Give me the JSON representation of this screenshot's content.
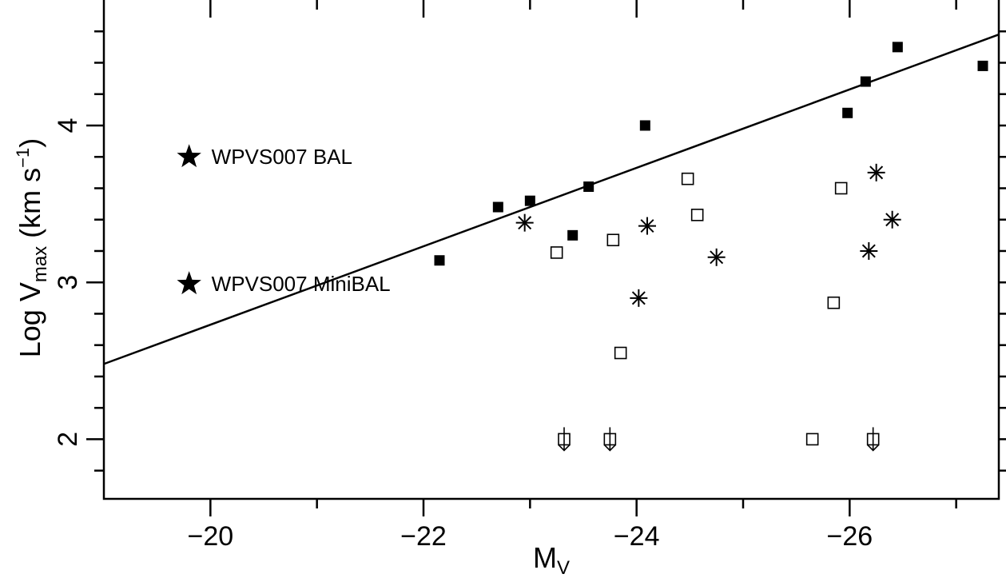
{
  "chart_data": {
    "type": "scatter",
    "title": "",
    "xlabel": "M",
    "xlabel_sub": "V",
    "ylabel_main": "Log V",
    "ylabel_sub": "max",
    "ylabel_unit_pre": " (km s",
    "ylabel_unit_sup": "−1",
    "ylabel_unit_post": ")",
    "xlim": [
      -19,
      -27.4
    ],
    "ylim": [
      1.62,
      4.8
    ],
    "x_reversed": true,
    "grid": false,
    "x_ticks": [
      -20,
      -22,
      -24,
      -26
    ],
    "x_tick_labels": [
      "−20",
      "−22",
      "−24",
      "−26"
    ],
    "x_minor_ticks": [
      -21,
      -23,
      -25,
      -27
    ],
    "y_ticks": [
      2,
      3,
      4
    ],
    "y_tick_labels": [
      "2",
      "3",
      "4"
    ],
    "y_minor_ticks": [
      1.8,
      2.2,
      2.4,
      2.6,
      2.8,
      3.2,
      3.4,
      3.6,
      3.8,
      4.2,
      4.4,
      4.6
    ],
    "fit_line": {
      "x": [
        -19,
        -27.4
      ],
      "y": [
        2.48,
        4.58
      ]
    },
    "series": [
      {
        "marker": "filled-square",
        "points": [
          [
            -22.15,
            3.14
          ],
          [
            -22.7,
            3.48
          ],
          [
            -23.0,
            3.52
          ],
          [
            -23.4,
            3.3
          ],
          [
            -23.55,
            3.61
          ],
          [
            -24.08,
            4.0
          ],
          [
            -25.98,
            4.08
          ],
          [
            -26.15,
            4.28
          ],
          [
            -26.45,
            4.5
          ],
          [
            -27.25,
            4.38
          ]
        ]
      },
      {
        "marker": "open-square",
        "points": [
          [
            -23.25,
            3.19
          ],
          [
            -23.78,
            3.27
          ],
          [
            -23.85,
            2.55
          ],
          [
            -24.48,
            3.66
          ],
          [
            -24.57,
            3.43
          ],
          [
            -25.85,
            2.87
          ],
          [
            -25.92,
            3.6
          ],
          [
            -25.65,
            2.0
          ]
        ]
      },
      {
        "marker": "open-square-upper-limit",
        "points": [
          [
            -23.32,
            2.0
          ],
          [
            -23.75,
            2.0
          ],
          [
            -26.22,
            2.0
          ]
        ]
      },
      {
        "marker": "asterisk",
        "points": [
          [
            -22.95,
            3.38
          ],
          [
            -24.02,
            2.9
          ],
          [
            -24.1,
            3.36
          ],
          [
            -24.75,
            3.16
          ],
          [
            -26.18,
            3.2
          ],
          [
            -26.25,
            3.7
          ],
          [
            -26.4,
            3.4
          ]
        ]
      }
    ],
    "annotations": [
      {
        "text": "WPVS007 BAL",
        "marker": "filled-star",
        "x": -19.8,
        "y": 3.8
      },
      {
        "text": "WPVS007 MiniBAL",
        "marker": "filled-star",
        "x": -19.8,
        "y": 2.99
      }
    ]
  }
}
